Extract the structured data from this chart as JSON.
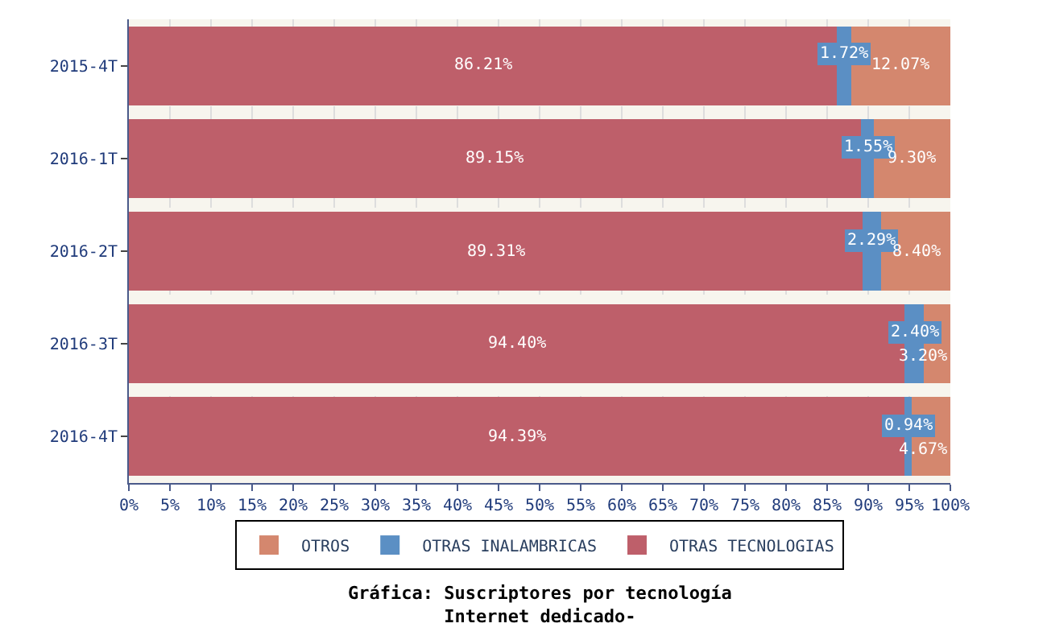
{
  "chart_data": {
    "type": "bar",
    "orientation": "horizontal",
    "stacked": true,
    "title": "Gráfica: Suscriptores por tecnología\nInternet dedicado-",
    "categories": [
      "2015-4T",
      "2016-1T",
      "2016-2T",
      "2016-3T",
      "2016-4T"
    ],
    "series": [
      {
        "name": "OTRAS TECNOLOGIAS",
        "color": "#be5f6a",
        "values": [
          86.21,
          89.15,
          89.31,
          94.4,
          94.39
        ],
        "value_labels": [
          "86.21%",
          "89.15%",
          "89.31%",
          "94.40%",
          "94.39%"
        ]
      },
      {
        "name": "OTRAS INALAMBRICAS",
        "color": "#5b8fc4",
        "values": [
          1.72,
          1.55,
          2.29,
          2.4,
          0.94
        ],
        "value_labels": [
          "1.72%",
          "1.55%",
          "2.29%",
          "2.40%",
          "0.94%"
        ]
      },
      {
        "name": "OTROS",
        "color": "#d4876e",
        "values": [
          12.07,
          9.3,
          8.4,
          3.2,
          4.67
        ],
        "value_labels": [
          "12.07%",
          "9.30%",
          "8.40%",
          "3.20%",
          "4.67%"
        ]
      }
    ],
    "xlim": [
      0,
      100
    ],
    "xticks": [
      {
        "value": 0,
        "label": "0%"
      },
      {
        "value": 5,
        "label": "5%"
      },
      {
        "value": 10,
        "label": "10%"
      },
      {
        "value": 15,
        "label": "15%"
      },
      {
        "value": 20,
        "label": "20%"
      },
      {
        "value": 25,
        "label": "25%"
      },
      {
        "value": 30,
        "label": "30%"
      },
      {
        "value": 35,
        "label": "35%"
      },
      {
        "value": 40,
        "label": "40%"
      },
      {
        "value": 45,
        "label": "45%"
      },
      {
        "value": 50,
        "label": "50%"
      },
      {
        "value": 55,
        "label": "55%"
      },
      {
        "value": 60,
        "label": "60%"
      },
      {
        "value": 65,
        "label": "65%"
      },
      {
        "value": 70,
        "label": "70%"
      },
      {
        "value": 75,
        "label": "75%"
      },
      {
        "value": 80,
        "label": "80%"
      },
      {
        "value": 85,
        "label": "85%"
      },
      {
        "value": 90,
        "label": "90%"
      },
      {
        "value": 95,
        "label": "95%"
      },
      {
        "value": 100,
        "label": "100%"
      }
    ],
    "data_labels": true,
    "grid": "x",
    "legend": "bottom"
  }
}
